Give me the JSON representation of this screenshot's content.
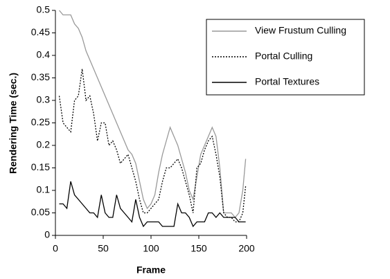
{
  "chart_data": {
    "type": "line",
    "xlabel": "Frame",
    "ylabel": "Rendering Time (sec.)",
    "x": [
      4,
      8,
      12,
      16,
      20,
      24,
      28,
      32,
      36,
      40,
      44,
      48,
      52,
      56,
      60,
      64,
      68,
      72,
      76,
      80,
      84,
      88,
      92,
      96,
      100,
      104,
      108,
      112,
      116,
      120,
      124,
      128,
      132,
      136,
      140,
      144,
      148,
      152,
      156,
      160,
      164,
      168,
      172,
      176,
      180,
      184,
      188,
      192,
      196,
      199
    ],
    "series": [
      {
        "name": "View Frustum Culling",
        "color": "#999999",
        "style": "solid",
        "values": [
          0.5,
          0.49,
          0.49,
          0.49,
          0.47,
          0.46,
          0.44,
          0.41,
          0.39,
          0.37,
          0.35,
          0.33,
          0.31,
          0.29,
          0.27,
          0.25,
          0.23,
          0.21,
          0.19,
          0.18,
          0.16,
          0.12,
          0.08,
          0.06,
          0.07,
          0.09,
          0.14,
          0.18,
          0.21,
          0.24,
          0.22,
          0.2,
          0.17,
          0.14,
          0.1,
          0.08,
          0.13,
          0.18,
          0.2,
          0.22,
          0.24,
          0.22,
          0.15,
          0.05,
          0.05,
          0.05,
          0.04,
          0.05,
          0.1,
          0.17
        ]
      },
      {
        "name": "Portal Culling",
        "color": "#000000",
        "style": "dotted",
        "values": [
          0.31,
          0.25,
          0.24,
          0.23,
          0.3,
          0.31,
          0.37,
          0.3,
          0.31,
          0.27,
          0.21,
          0.25,
          0.25,
          0.2,
          0.21,
          0.19,
          0.16,
          0.17,
          0.18,
          0.15,
          0.12,
          0.08,
          0.05,
          0.05,
          0.06,
          0.07,
          0.08,
          0.12,
          0.15,
          0.15,
          0.16,
          0.17,
          0.15,
          0.12,
          0.09,
          0.05,
          0.15,
          0.16,
          0.19,
          0.21,
          0.22,
          0.18,
          0.13,
          0.05,
          0.04,
          0.04,
          0.03,
          0.03,
          0.05,
          0.11
        ]
      },
      {
        "name": "Portal Textures",
        "color": "#000000",
        "style": "solid",
        "values": [
          0.07,
          0.07,
          0.06,
          0.12,
          0.09,
          0.08,
          0.07,
          0.06,
          0.05,
          0.05,
          0.04,
          0.09,
          0.05,
          0.04,
          0.04,
          0.09,
          0.06,
          0.05,
          0.04,
          0.03,
          0.08,
          0.04,
          0.02,
          0.03,
          0.03,
          0.03,
          0.03,
          0.02,
          0.02,
          0.02,
          0.02,
          0.07,
          0.05,
          0.05,
          0.04,
          0.02,
          0.03,
          0.03,
          0.03,
          0.05,
          0.05,
          0.04,
          0.05,
          0.04,
          0.04,
          0.04,
          0.04,
          0.03,
          0.03,
          0.03
        ]
      }
    ],
    "xlim": [
      0,
      200
    ],
    "xticks": [
      0,
      50,
      100,
      150,
      200
    ],
    "ylim": [
      0,
      0.5
    ],
    "yticks": [
      0,
      0.05,
      0.1,
      0.15,
      0.2,
      0.25,
      0.3,
      0.35,
      0.4,
      0.45,
      0.5
    ],
    "grid": false,
    "legend": "upper right"
  }
}
